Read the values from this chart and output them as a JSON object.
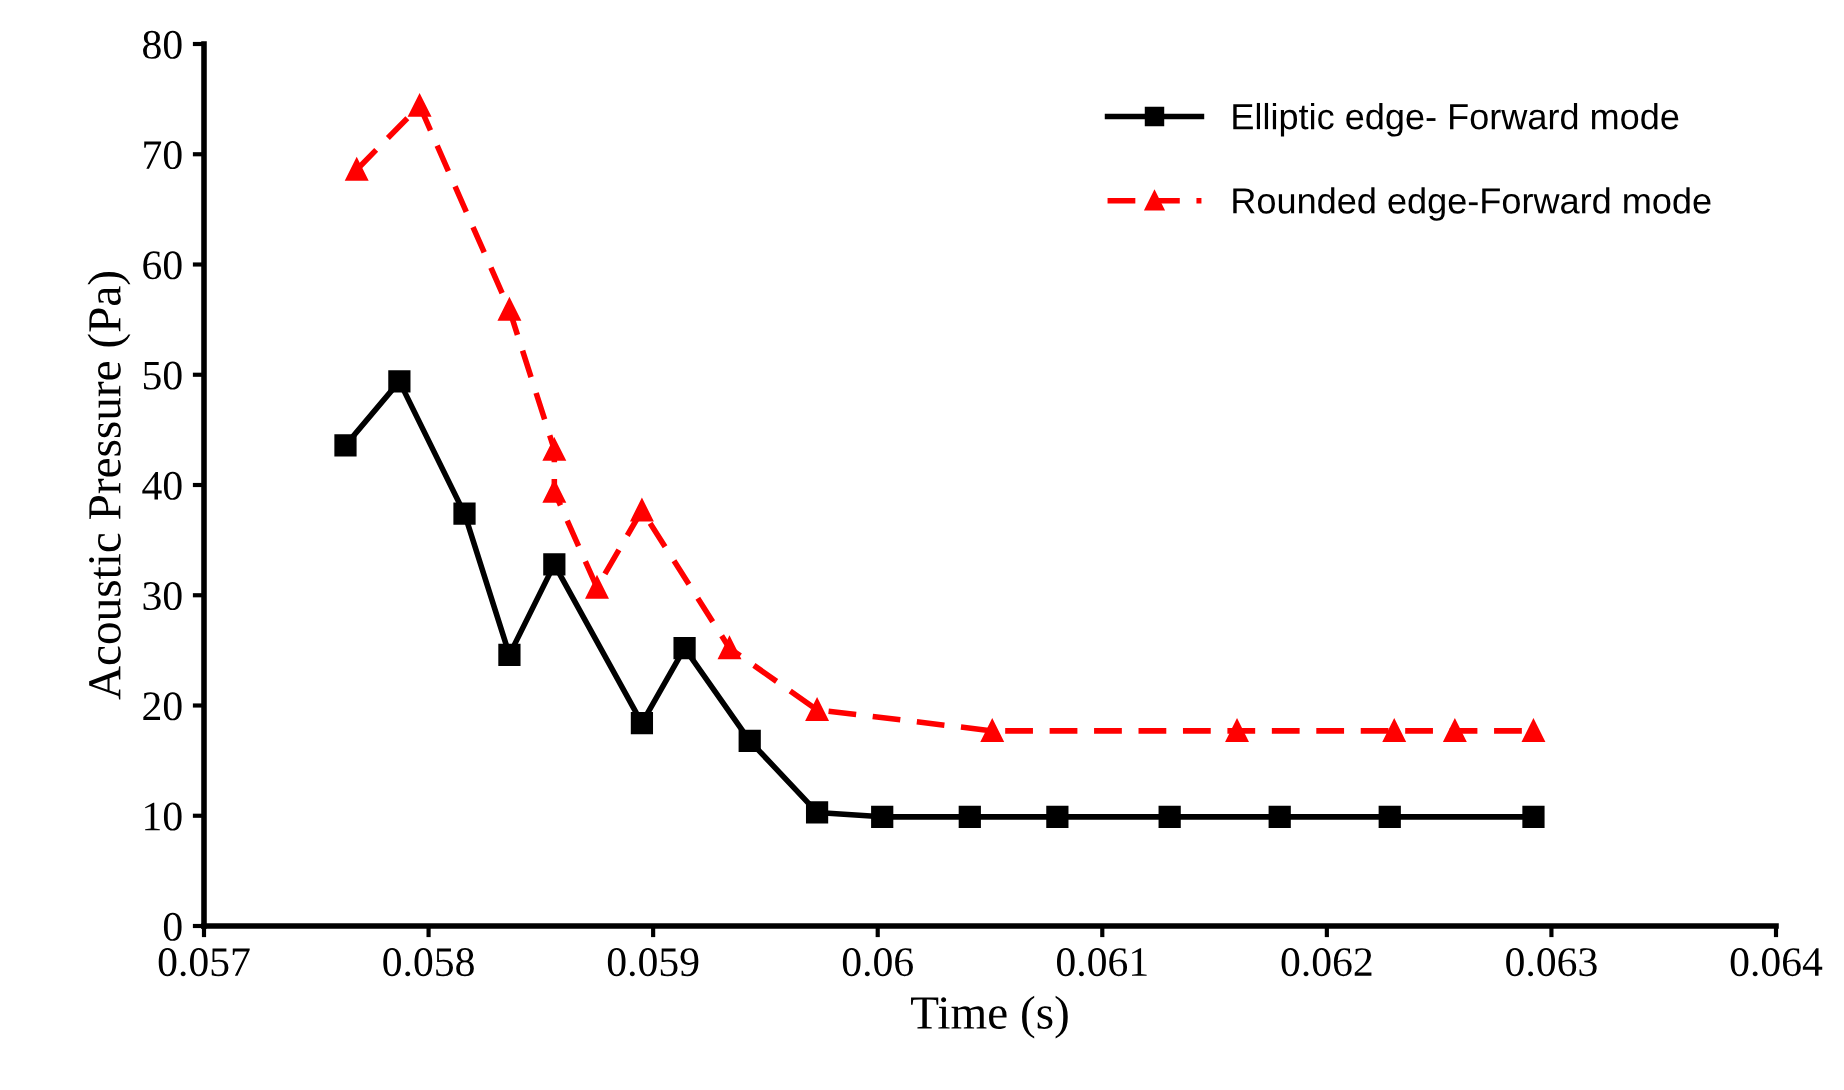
{
  "chart_data": {
    "type": "line",
    "xlabel": "Time (s)",
    "ylabel": "Acoustic Pressure (Pa)",
    "xlim": [
      0.057,
      0.064
    ],
    "xticks": [
      0.057,
      0.058,
      0.059,
      0.06,
      0.061,
      0.062,
      0.063,
      0.064
    ],
    "ylim": [
      0,
      80
    ],
    "yticks": [
      0,
      10,
      20,
      30,
      40,
      50,
      60,
      70,
      80
    ],
    "grid": false,
    "legend": "top right",
    "series": [
      {
        "name": "Elliptic edge- Forward mode",
        "color": "#000000",
        "marker": "square",
        "line_style": "solid",
        "x": [
          0.05763,
          0.05787,
          0.05816,
          0.05836,
          0.05856,
          0.05895,
          0.05914,
          0.05943,
          0.05973,
          0.06002,
          0.06041,
          0.0608,
          0.0613,
          0.06179,
          0.06228,
          0.06292
        ],
        "values": [
          43.6,
          49.4,
          37.4,
          24.6,
          32.8,
          18.4,
          25.2,
          16.8,
          10.3,
          9.9,
          9.9,
          9.9,
          9.9,
          9.9,
          9.9,
          9.9
        ]
      },
      {
        "name": "Rounded edge-Forward mode",
        "color": "#ff0000",
        "marker": "triangle",
        "line_style": "dashed",
        "x": [
          0.05768,
          0.05796,
          0.05836,
          0.05856,
          0.05856,
          0.05875,
          0.05895,
          0.05934,
          0.05973,
          0.06051,
          0.0616,
          0.0623,
          0.06257,
          0.06292
        ],
        "values": [
          68.6,
          74.4,
          55.9,
          43.2,
          39.4,
          30.7,
          37.7,
          25.2,
          19.6,
          17.7,
          17.7,
          17.7,
          17.7,
          17.7
        ]
      }
    ]
  }
}
